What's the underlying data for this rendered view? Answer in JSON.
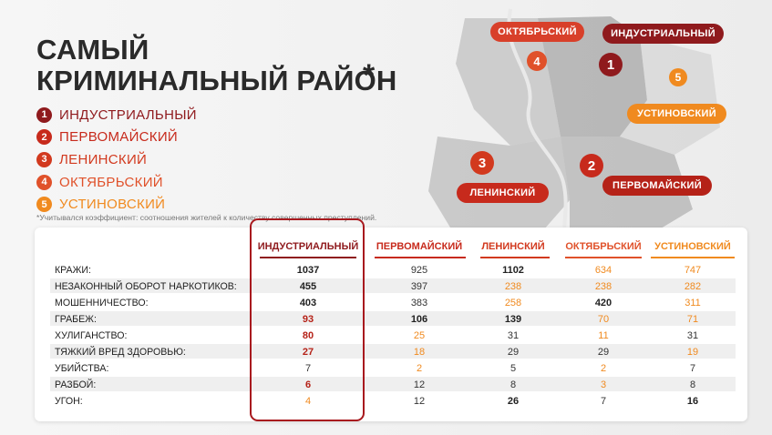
{
  "title": {
    "line1": "САМЫЙ",
    "line2": "КРИМИНАЛЬНЫЙ РАЙОН",
    "star": "*"
  },
  "legend": [
    {
      "num": "1",
      "label": "ИНДУСТРИАЛЬНЫЙ",
      "color": "#8f1a1d"
    },
    {
      "num": "2",
      "label": "ПЕРВОМАЙСКИЙ",
      "color": "#c72a1c"
    },
    {
      "num": "3",
      "label": "ЛЕНИНСКИЙ",
      "color": "#d2391e"
    },
    {
      "num": "4",
      "label": "ОКТЯБРЬСКИЙ",
      "color": "#e0512a"
    },
    {
      "num": "5",
      "label": "УСТИНОВСКИЙ",
      "color": "#f08a1f"
    }
  ],
  "note": "*Учитывался коэффициент: соотношения жителей к количеству совершенных преступлений.",
  "map_labels": {
    "oktyabrsky": "ОКТЯБРЬСКИЙ",
    "industrialny": "ИНДУСТРИАЛЬНЫЙ",
    "ustinovsky": "УСТИНОВСКИЙ",
    "leninsky": "ЛЕНИНСКИЙ",
    "pervomaysky": "ПЕРВОМАЙСКИЙ",
    "m1": "1",
    "m2": "2",
    "m3": "3",
    "m4": "4",
    "m5": "5"
  },
  "table": {
    "columns": [
      "ИНДУСТРИАЛЬНЫЙ",
      "ПЕРВОМАЙСКИЙ",
      "ЛЕНИНСКИЙ",
      "ОКТЯБРЬСКИЙ",
      "УСТИНОВСКИЙ"
    ],
    "rows": [
      {
        "label": "КРАЖИ:",
        "values": [
          "1037",
          "925",
          "1102",
          "634",
          "747"
        ]
      },
      {
        "label": "НЕЗАКОННЫЙ ОБОРОТ НАРКОТИКОВ:",
        "values": [
          "455",
          "397",
          "238",
          "238",
          "282"
        ]
      },
      {
        "label": "МОШЕННИЧЕСТВО:",
        "values": [
          "403",
          "383",
          "258",
          "420",
          "311"
        ]
      },
      {
        "label": "ГРАБЕЖ:",
        "values": [
          "93",
          "106",
          "139",
          "70",
          "71"
        ]
      },
      {
        "label": "ХУЛИГАНСТВО:",
        "values": [
          "80",
          "25",
          "31",
          "11",
          "31"
        ]
      },
      {
        "label": "ТЯЖКИЙ ВРЕД ЗДОРОВЬЮ:",
        "values": [
          "27",
          "18",
          "29",
          "29",
          "19"
        ]
      },
      {
        "label": "УБИЙСТВА:",
        "values": [
          "7",
          "2",
          "5",
          "2",
          "7"
        ]
      },
      {
        "label": "РАЗБОЙ:",
        "values": [
          "6",
          "12",
          "8",
          "3",
          "8"
        ]
      },
      {
        "label": "УГОН:",
        "values": [
          "4",
          "12",
          "26",
          "7",
          "16"
        ]
      }
    ]
  },
  "colors": {
    "dark_red": "#8f1a1d",
    "red": "#c72a1c",
    "orange": "#f08a1f",
    "value_dark": "#222222"
  }
}
